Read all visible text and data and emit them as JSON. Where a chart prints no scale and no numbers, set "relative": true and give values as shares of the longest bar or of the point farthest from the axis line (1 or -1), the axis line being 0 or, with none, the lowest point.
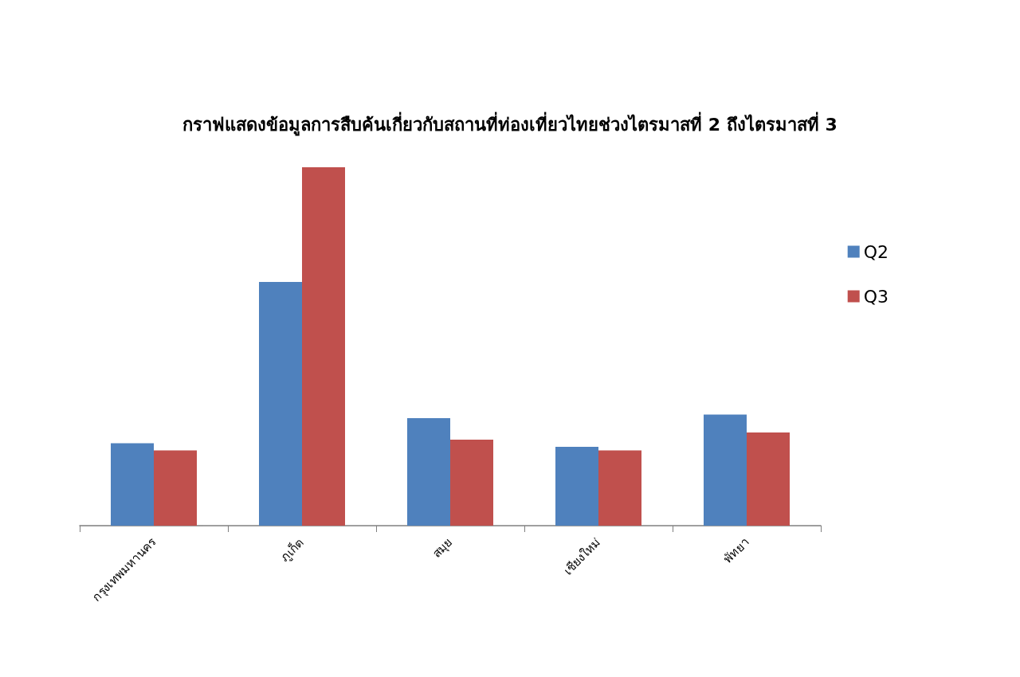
{
  "chart_data": {
    "type": "bar",
    "title": "กราฟแสดงข้อมูลการสืบค้นเกี่ยวกับสถานที่ท่องเที่ยวไทยช่วงไตรมาสที่ 2 ถึงไตรมาสที่ 3",
    "categories": [
      "กรุงเทพมหานคร",
      "ภูเก็ต",
      "สมุย",
      "เชียงใหม่",
      "พัทยา"
    ],
    "series": [
      {
        "name": "Q2",
        "color": "#4f81bd",
        "values": [
          0.23,
          0.68,
          0.3,
          0.22,
          0.31
        ]
      },
      {
        "name": "Q3",
        "color": "#c0504d",
        "values": [
          0.21,
          1,
          0.24,
          0.21,
          0.26
        ]
      }
    ],
    "relative": true,
    "legend": "right",
    "grid": false
  }
}
